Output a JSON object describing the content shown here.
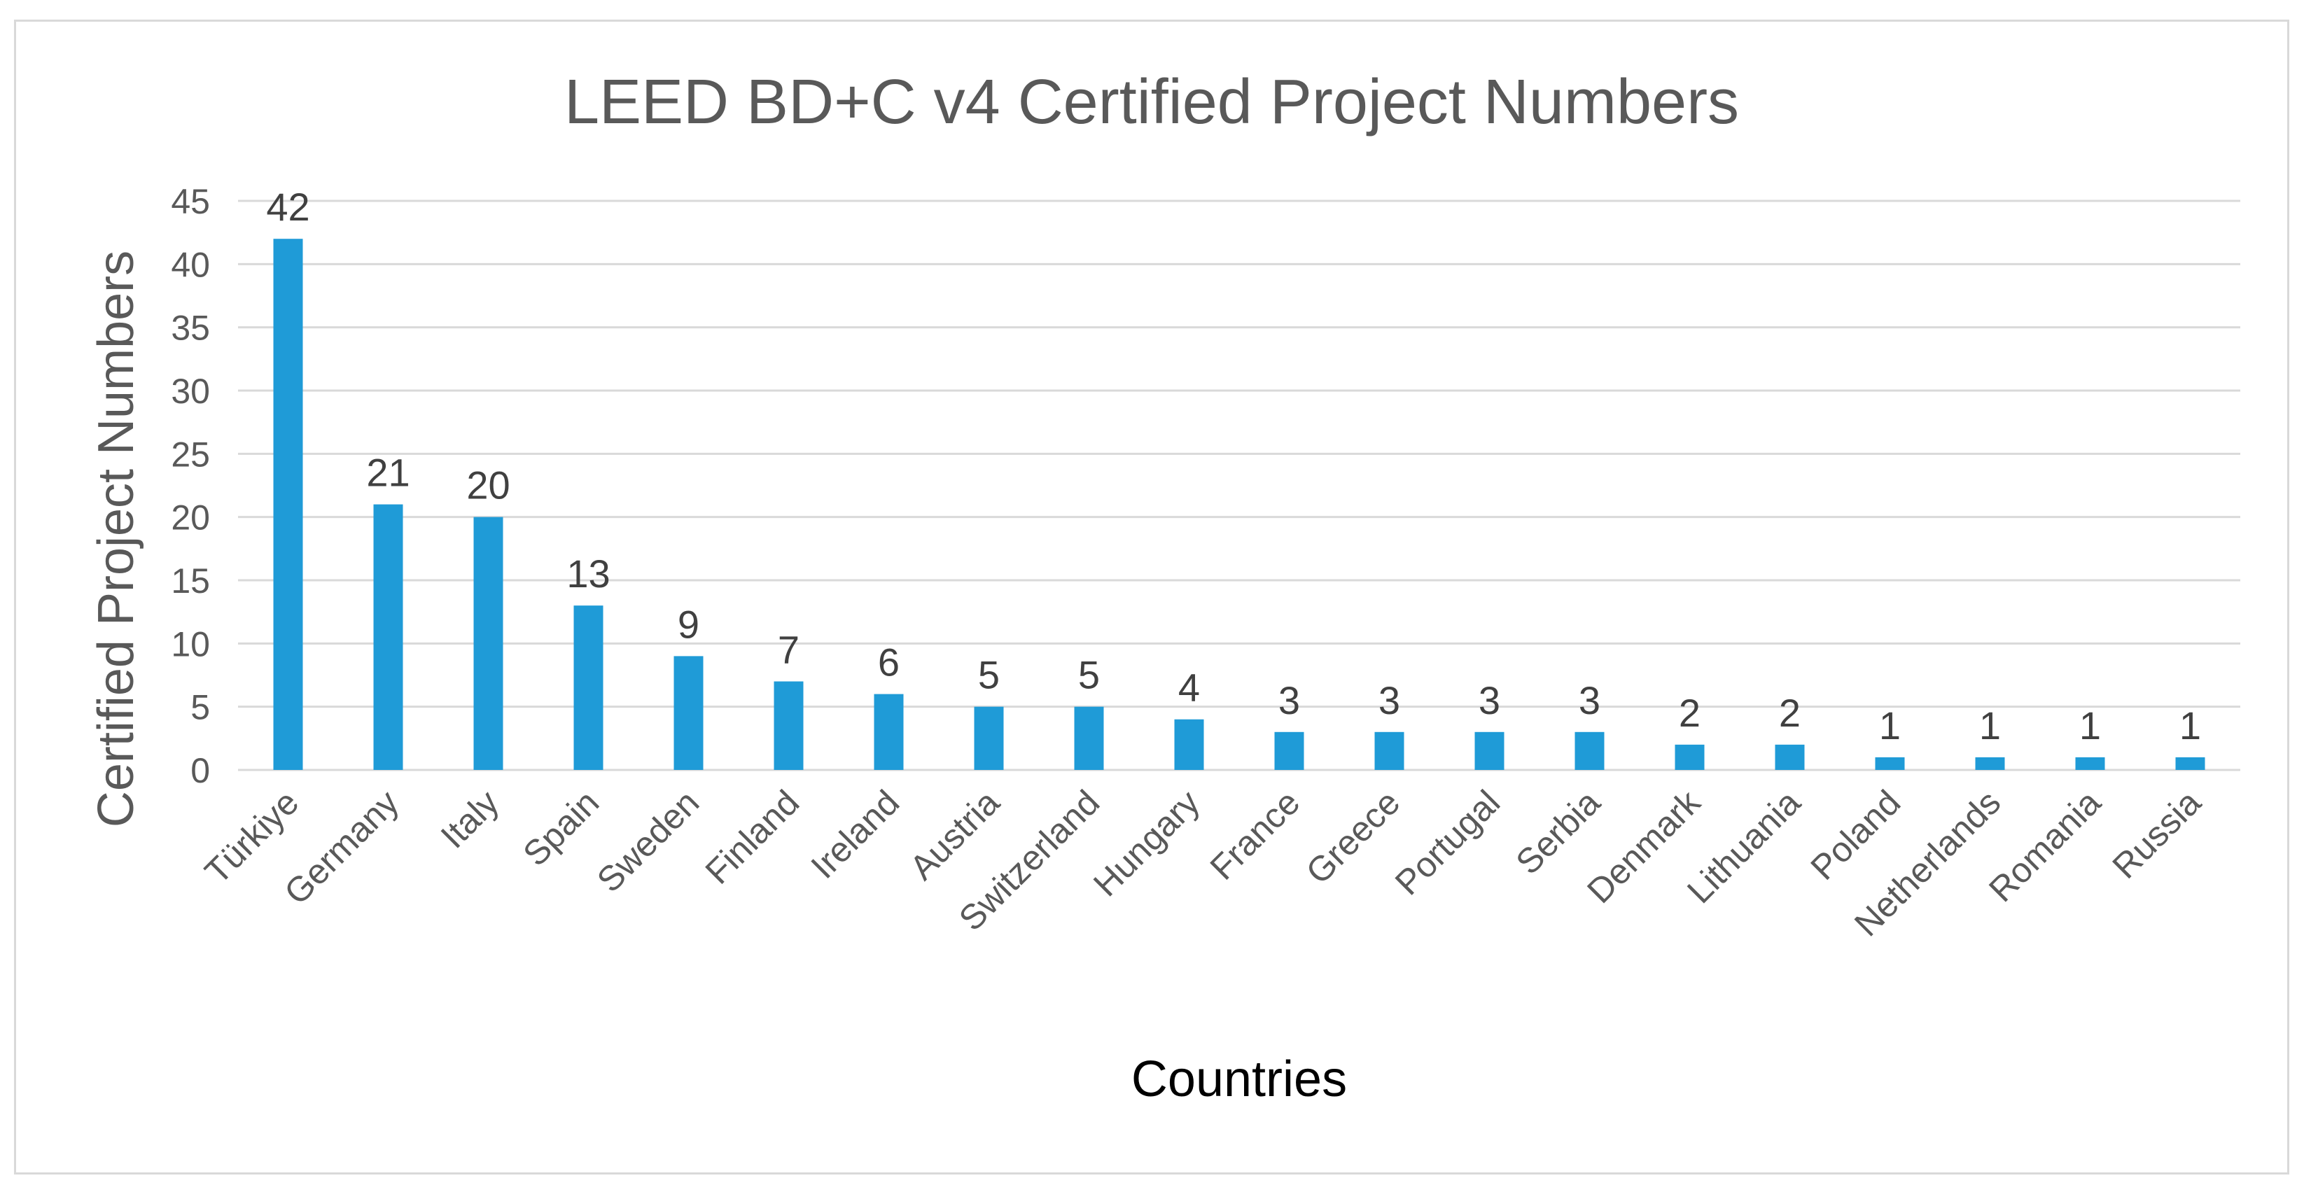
{
  "chart_data": {
    "type": "bar",
    "title": "LEED BD+C v4 Certified Project Numbers",
    "xlabel": "Countries",
    "ylabel": "Certified Project Numbers",
    "categories": [
      "Türkiye",
      "Germany",
      "Italy",
      "Spain",
      "Sweden",
      "Finland",
      "Ireland",
      "Austria",
      "Switzerland",
      "Hungary",
      "France",
      "Greece",
      "Portugal",
      "Serbia",
      "Denmark",
      "Lithuania",
      "Poland",
      "Netherlands",
      "Romania",
      "Russia"
    ],
    "values": [
      42,
      21,
      20,
      13,
      9,
      7,
      6,
      5,
      5,
      4,
      3,
      3,
      3,
      3,
      2,
      2,
      1,
      1,
      1,
      1
    ],
    "ylim": [
      0,
      45
    ],
    "yticks": [
      0,
      5,
      10,
      15,
      20,
      25,
      30,
      35,
      40,
      45
    ],
    "grid": true,
    "legend": "none",
    "data_labels": true,
    "colors": {
      "bar": "#1f9bd7",
      "grid": "#d9d9d9",
      "frame": "#d9d9d9",
      "text": "#595959"
    }
  }
}
